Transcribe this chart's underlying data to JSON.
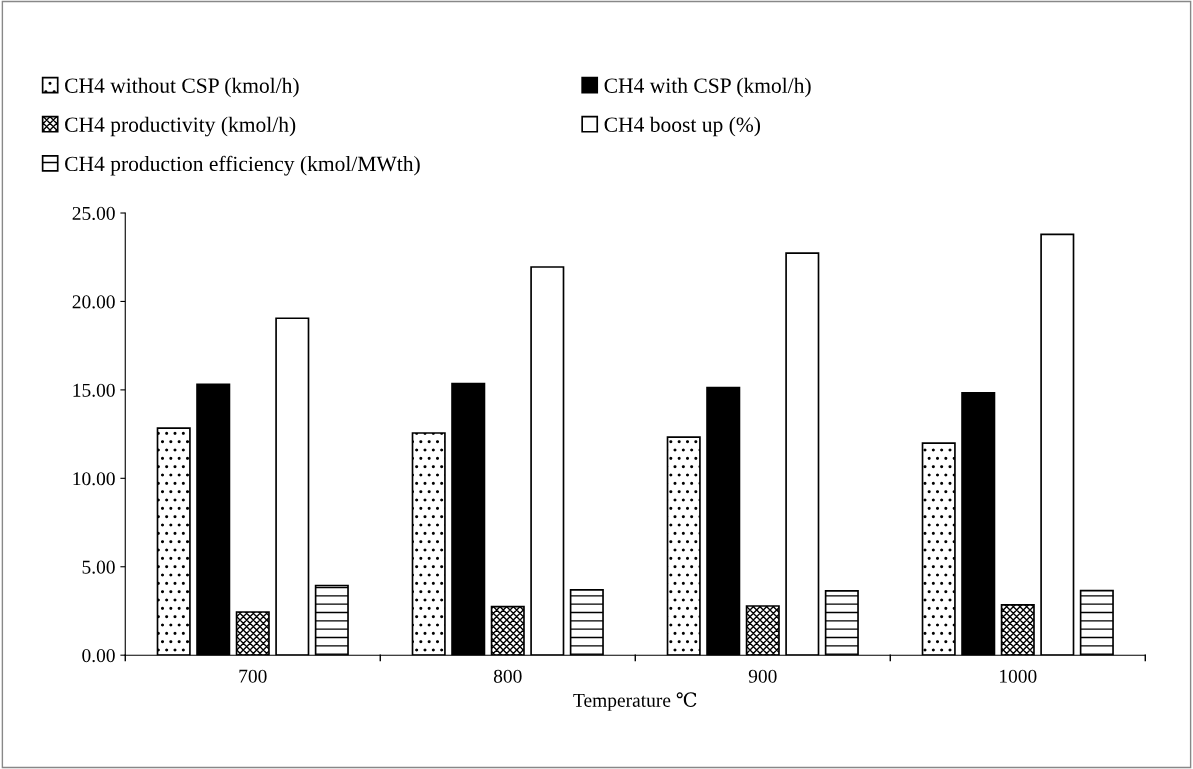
{
  "chart_data": {
    "type": "bar",
    "xlabel": "Temperature ℃",
    "categories": [
      "700",
      "800",
      "900",
      "1000"
    ],
    "series": [
      {
        "name": "CH4 without CSP (kmol/h)",
        "color": "#000000",
        "values": [
          12.84,
          12.56,
          12.33,
          11.99
        ]
      },
      {
        "name": "CH4 with CSP (kmol/h)",
        "color": "#000000",
        "values": [
          15.32,
          15.36,
          15.13,
          14.83
        ]
      },
      {
        "name": "CH4 productivity (kmol/h)",
        "color": "#000000",
        "values": [
          2.44,
          2.75,
          2.78,
          2.84
        ]
      },
      {
        "name": "CH4 boost up (%)",
        "color": "#ffffff",
        "values": [
          19.05,
          21.95,
          22.73,
          23.79
        ]
      },
      {
        "name": "CH4 production efficiency (kmol/MWth)",
        "color": "#000000",
        "values": [
          3.94,
          3.69,
          3.64,
          3.65
        ]
      }
    ],
    "ylim": [
      0,
      25
    ],
    "yticks": [
      {
        "value": 0,
        "label": "0.00"
      },
      {
        "value": 5,
        "label": "5.00"
      },
      {
        "value": 10,
        "label": "10.00"
      },
      {
        "value": 15,
        "label": "15.00"
      },
      {
        "value": 20,
        "label": "20.00"
      },
      {
        "value": 25,
        "label": "25.00"
      }
    ],
    "grid": false,
    "legend": "top"
  }
}
